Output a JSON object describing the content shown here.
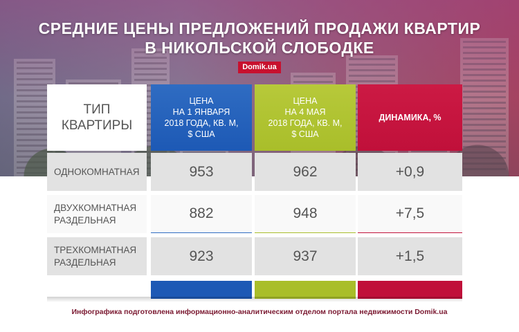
{
  "header": {
    "title_line1": "СРЕДНИЕ ЦЕНЫ ПРЕДЛОЖЕНИЙ ПРОДАЖИ КВАРТИР",
    "title_line2": "В НИКОЛЬСКОЙ СЛОБОДКЕ",
    "brand": "Domik.ua"
  },
  "table": {
    "columns": [
      {
        "lines": [
          "ТИП",
          "КВАРТИРЫ"
        ]
      },
      {
        "lines": [
          "ЦЕНА",
          "НА 1 ЯНВАРЯ",
          "2018 ГОДА, КВ. М,",
          "$ США"
        ]
      },
      {
        "lines": [
          "ЦЕНА",
          "НА 4 МАЯ",
          "2018 ГОДА, КВ. М,",
          "$ США"
        ]
      },
      {
        "lines": [
          "ДИНАМИКА, %"
        ]
      }
    ],
    "rows": [
      {
        "type": [
          "ОДНОКОМНАТНАЯ"
        ],
        "jan": "953",
        "may": "962",
        "change": "+0,9"
      },
      {
        "type": [
          "ДВУХКОМНАТНАЯ",
          "РАЗДЕЛЬНАЯ"
        ],
        "jan": "882",
        "may": "948",
        "change": "+7,5"
      },
      {
        "type": [
          "ТРЕХКОМНАТНАЯ",
          "РАЗДЕЛЬНАЯ"
        ],
        "jan": "923",
        "may": "937",
        "change": "+1,5"
      }
    ]
  },
  "footer": {
    "credit": "Инфографика подготовлена информационно-аналитическим отделом портала недвижимости Domik.ua"
  },
  "colors": {
    "blue": "#1d59b5",
    "green": "#a9be2a",
    "red": "#c0103a",
    "brand_red": "#c8102e"
  }
}
